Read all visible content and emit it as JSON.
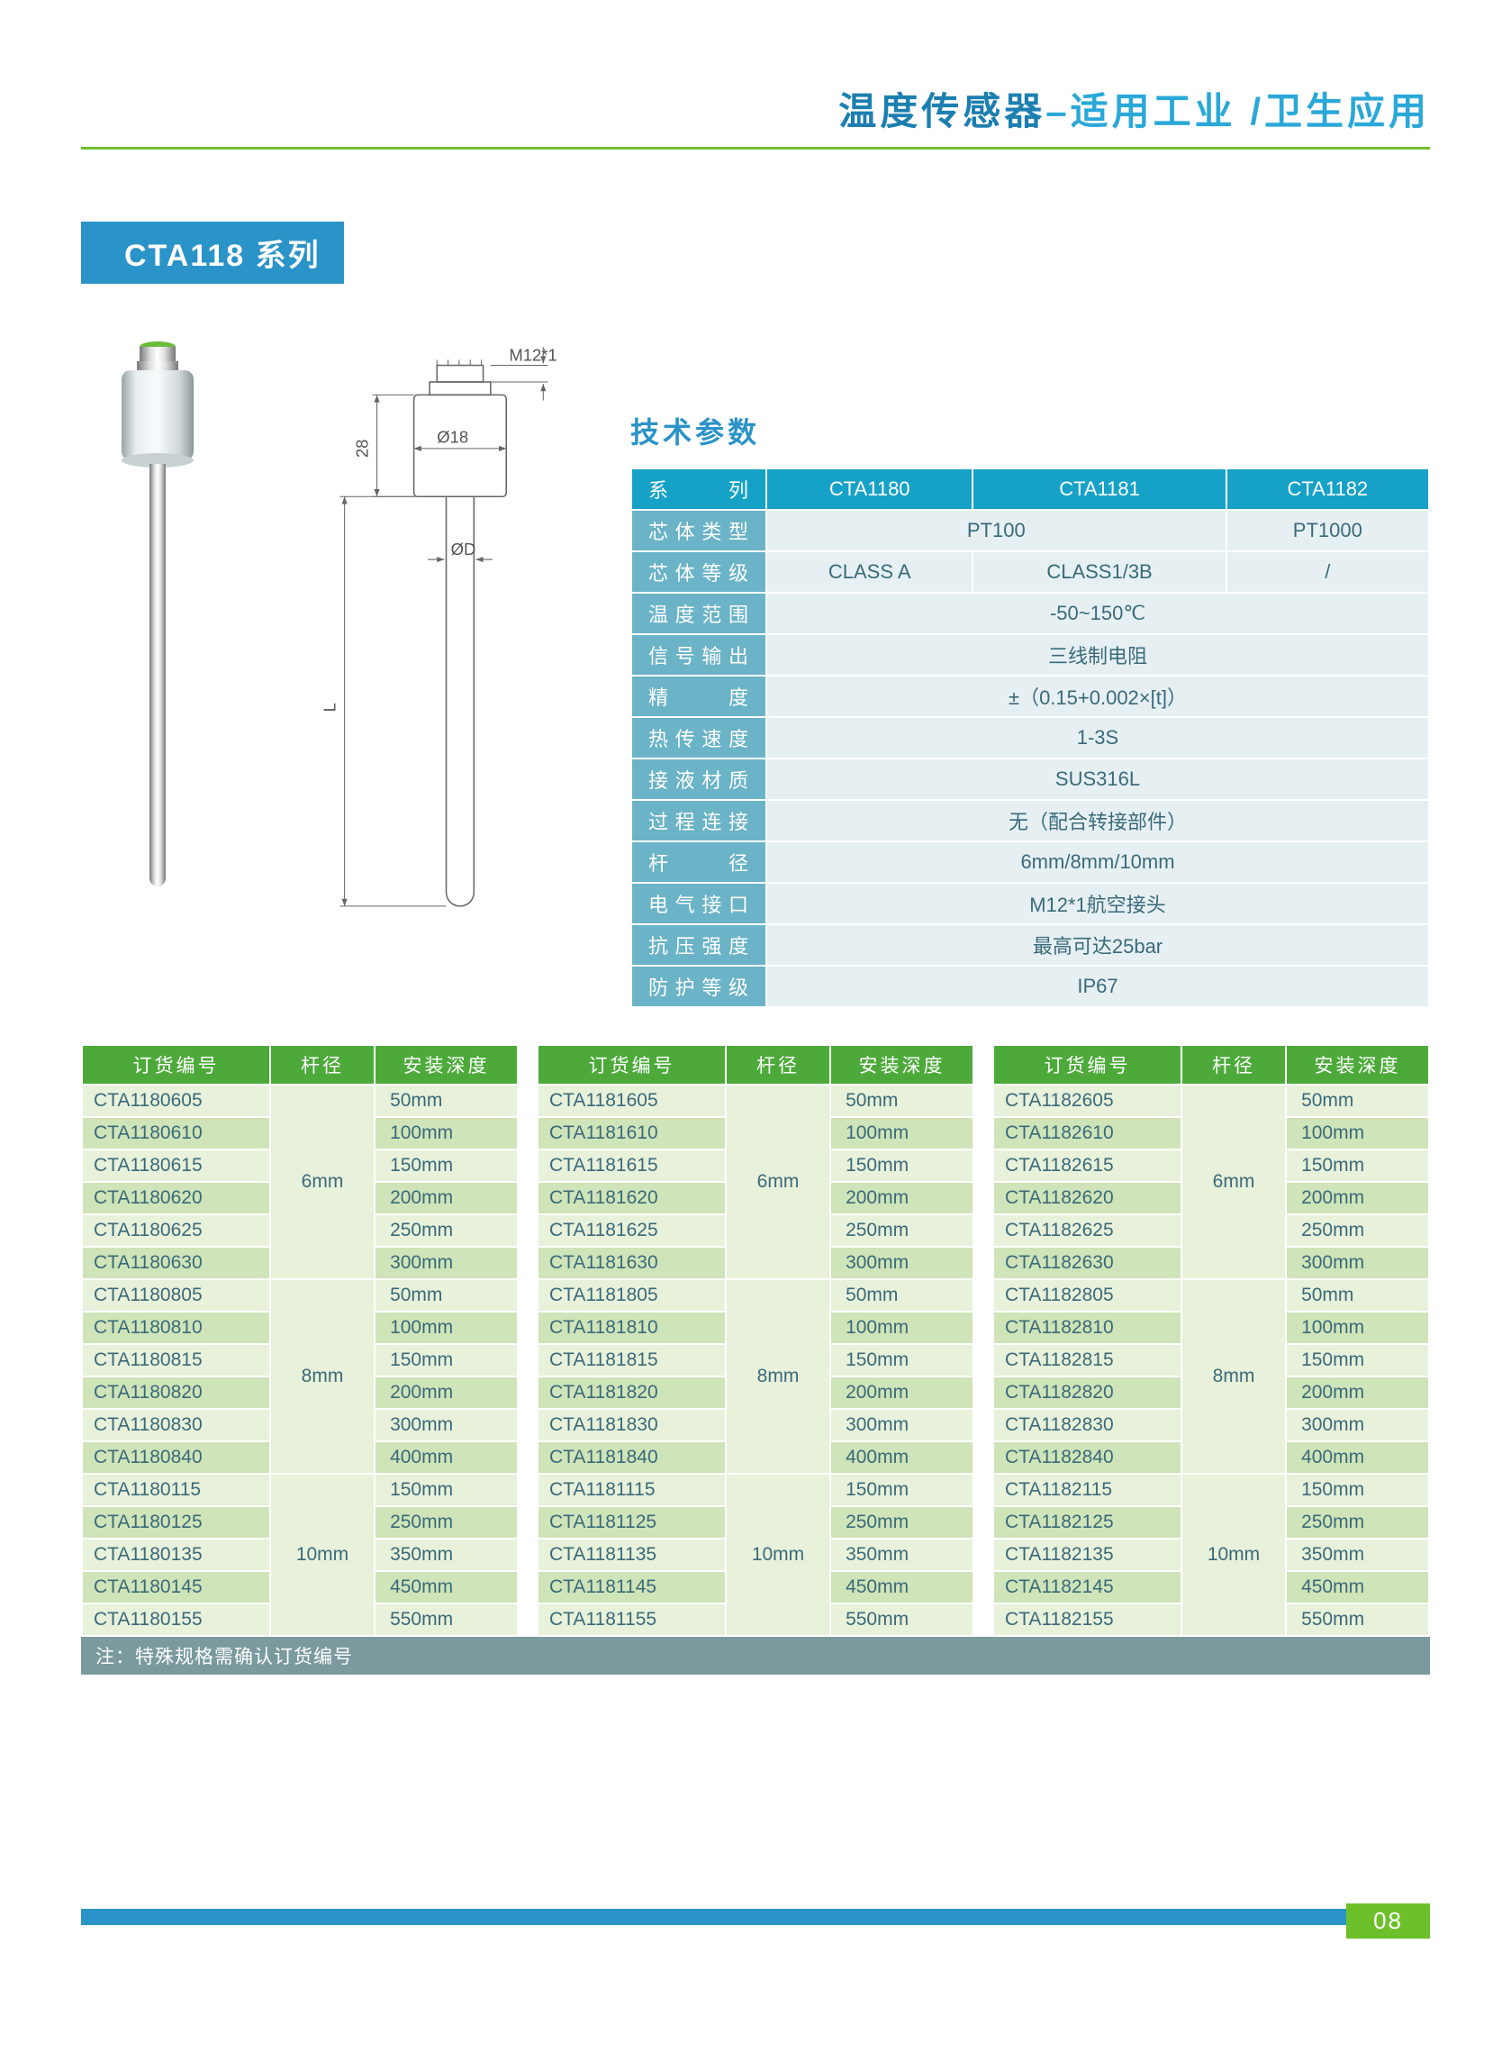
{
  "colors": {
    "title_strong": "#1c7fb0",
    "title_light": "#2aa8d8",
    "underline": "#6ec02b",
    "badge_bg": "#2a93c7",
    "tech_title": "#2a93c7",
    "spec_label_bg": "#6bb3c7",
    "spec_head_bg": "#16a2c7",
    "spec_val_bg": "#e6f0f3",
    "order_head_bg": "#4daa3a",
    "order_row_a": "#e8f1da",
    "order_row_b": "#cfe4b8",
    "note_bg": "#7a9a9e",
    "footer_bar": "#2a93c7",
    "page_badge": "#6ec02b"
  },
  "header": {
    "strong": "温度传感器",
    "light": "–适用工业 /卫生应用"
  },
  "series_badge": "CTA118 系列",
  "tech_title": "技术参数",
  "diagram": {
    "m12": "M12*1",
    "h28": "28",
    "d18": "Ø18",
    "dD": "ØD",
    "L": "L"
  },
  "spec_table": {
    "head_label": "系     列",
    "head_cols": [
      "CTA1180",
      "CTA1181",
      "CTA1182"
    ],
    "rows": [
      {
        "label": "芯体类型",
        "cells": [
          {
            "span": 2,
            "t": "PT100"
          },
          {
            "span": 1,
            "t": "PT1000"
          }
        ]
      },
      {
        "label": "芯体等级",
        "cells": [
          {
            "span": 1,
            "t": "CLASS A"
          },
          {
            "span": 1,
            "t": "CLASS1/3B"
          },
          {
            "span": 1,
            "t": "/"
          }
        ]
      },
      {
        "label": "温度范围",
        "cells": [
          {
            "span": 3,
            "t": "-50~150℃"
          }
        ]
      },
      {
        "label": "信号输出",
        "cells": [
          {
            "span": 3,
            "t": "三线制电阻"
          }
        ]
      },
      {
        "label": "精     度",
        "cells": [
          {
            "span": 3,
            "t": "±（0.15+0.002×[t]）"
          }
        ]
      },
      {
        "label": "热传速度",
        "cells": [
          {
            "span": 3,
            "t": "1-3S"
          }
        ]
      },
      {
        "label": "接液材质",
        "cells": [
          {
            "span": 3,
            "t": "SUS316L"
          }
        ]
      },
      {
        "label": "过程连接",
        "cells": [
          {
            "span": 3,
            "t": "无（配合转接部件）"
          }
        ]
      },
      {
        "label": "杆     径",
        "cells": [
          {
            "span": 3,
            "t": "6mm/8mm/10mm"
          }
        ]
      },
      {
        "label": "电气接口",
        "cells": [
          {
            "span": 3,
            "t": "M12*1航空接头"
          }
        ]
      },
      {
        "label": "抗压强度",
        "cells": [
          {
            "span": 3,
            "t": "最高可达25bar"
          }
        ]
      },
      {
        "label": "防护等级",
        "cells": [
          {
            "span": 3,
            "t": "IP67"
          }
        ]
      }
    ]
  },
  "order_headers": [
    "订货编号",
    "杆径",
    "安装深度"
  ],
  "order_groups": {
    "dia_labels": [
      "6mm",
      "8mm",
      "10mm"
    ],
    "dia_counts": [
      6,
      6,
      5
    ],
    "tables": [
      {
        "rows": [
          {
            "code": "CTA1180605",
            "depth": "50mm"
          },
          {
            "code": "CTA1180610",
            "depth": "100mm"
          },
          {
            "code": "CTA1180615",
            "depth": "150mm"
          },
          {
            "code": "CTA1180620",
            "depth": "200mm"
          },
          {
            "code": "CTA1180625",
            "depth": "250mm"
          },
          {
            "code": "CTA1180630",
            "depth": "300mm"
          },
          {
            "code": "CTA1180805",
            "depth": "50mm"
          },
          {
            "code": "CTA1180810",
            "depth": "100mm"
          },
          {
            "code": "CTA1180815",
            "depth": "150mm"
          },
          {
            "code": "CTA1180820",
            "depth": "200mm"
          },
          {
            "code": "CTA1180830",
            "depth": "300mm"
          },
          {
            "code": "CTA1180840",
            "depth": "400mm"
          },
          {
            "code": "CTA1180115",
            "depth": "150mm"
          },
          {
            "code": "CTA1180125",
            "depth": "250mm"
          },
          {
            "code": "CTA1180135",
            "depth": "350mm"
          },
          {
            "code": "CTA1180145",
            "depth": "450mm"
          },
          {
            "code": "CTA1180155",
            "depth": "550mm"
          }
        ]
      },
      {
        "rows": [
          {
            "code": "CTA1181605",
            "depth": "50mm"
          },
          {
            "code": "CTA1181610",
            "depth": "100mm"
          },
          {
            "code": "CTA1181615",
            "depth": "150mm"
          },
          {
            "code": "CTA1181620",
            "depth": "200mm"
          },
          {
            "code": "CTA1181625",
            "depth": "250mm"
          },
          {
            "code": "CTA1181630",
            "depth": "300mm"
          },
          {
            "code": "CTA1181805",
            "depth": "50mm"
          },
          {
            "code": "CTA1181810",
            "depth": "100mm"
          },
          {
            "code": "CTA1181815",
            "depth": "150mm"
          },
          {
            "code": "CTA1181820",
            "depth": "200mm"
          },
          {
            "code": "CTA1181830",
            "depth": "300mm"
          },
          {
            "code": "CTA1181840",
            "depth": "400mm"
          },
          {
            "code": "CTA1181115",
            "depth": "150mm"
          },
          {
            "code": "CTA1181125",
            "depth": "250mm"
          },
          {
            "code": "CTA1181135",
            "depth": "350mm"
          },
          {
            "code": "CTA1181145",
            "depth": "450mm"
          },
          {
            "code": "CTA1181155",
            "depth": "550mm"
          }
        ]
      },
      {
        "rows": [
          {
            "code": "CTA1182605",
            "depth": "50mm"
          },
          {
            "code": "CTA1182610",
            "depth": "100mm"
          },
          {
            "code": "CTA1182615",
            "depth": "150mm"
          },
          {
            "code": "CTA1182620",
            "depth": "200mm"
          },
          {
            "code": "CTA1182625",
            "depth": "250mm"
          },
          {
            "code": "CTA1182630",
            "depth": "300mm"
          },
          {
            "code": "CTA1182805",
            "depth": "50mm"
          },
          {
            "code": "CTA1182810",
            "depth": "100mm"
          },
          {
            "code": "CTA1182815",
            "depth": "150mm"
          },
          {
            "code": "CTA1182820",
            "depth": "200mm"
          },
          {
            "code": "CTA1182830",
            "depth": "300mm"
          },
          {
            "code": "CTA1182840",
            "depth": "400mm"
          },
          {
            "code": "CTA1182115",
            "depth": "150mm"
          },
          {
            "code": "CTA1182125",
            "depth": "250mm"
          },
          {
            "code": "CTA1182135",
            "depth": "350mm"
          },
          {
            "code": "CTA1182145",
            "depth": "450mm"
          },
          {
            "code": "CTA1182155",
            "depth": "550mm"
          }
        ]
      }
    ]
  },
  "note": "注：特殊规格需确认订货编号",
  "page_number": "08"
}
